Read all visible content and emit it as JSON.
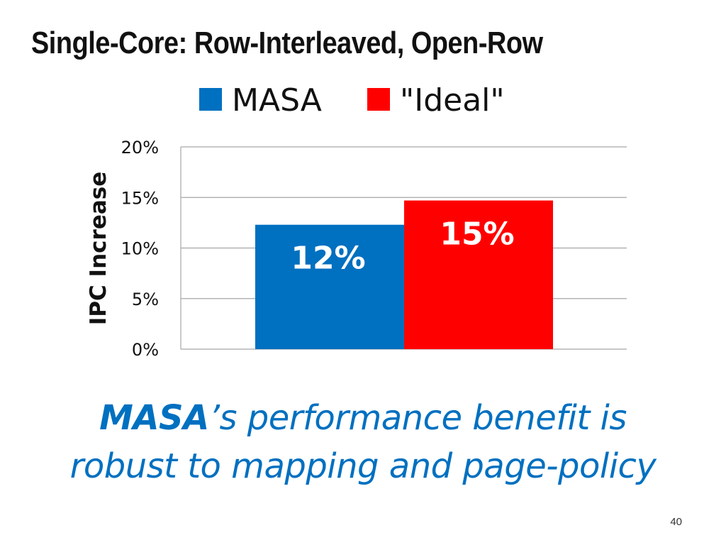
{
  "slide": {
    "title": "Single-Core: Row-Interleaved, Open-Row",
    "caption_strong": "MASA",
    "caption_rest_line1": "’s performance benefit is",
    "caption_line2": "robust to mapping and page-policy",
    "page_number": "40"
  },
  "chart_data": {
    "type": "bar",
    "title": "",
    "xlabel": "",
    "ylabel": "IPC Increase",
    "ylim": [
      0,
      20
    ],
    "yticks": [
      "0%",
      "5%",
      "10%",
      "15%",
      "20%"
    ],
    "grid": true,
    "legend_position": "top",
    "categories": [
      ""
    ],
    "series": [
      {
        "name": "MASA",
        "values": [
          12.3
        ],
        "label": "12%",
        "color": "#0070c0"
      },
      {
        "name": "\"Ideal\"",
        "values": [
          14.7
        ],
        "label": "15%",
        "color": "#ff0000"
      }
    ]
  }
}
